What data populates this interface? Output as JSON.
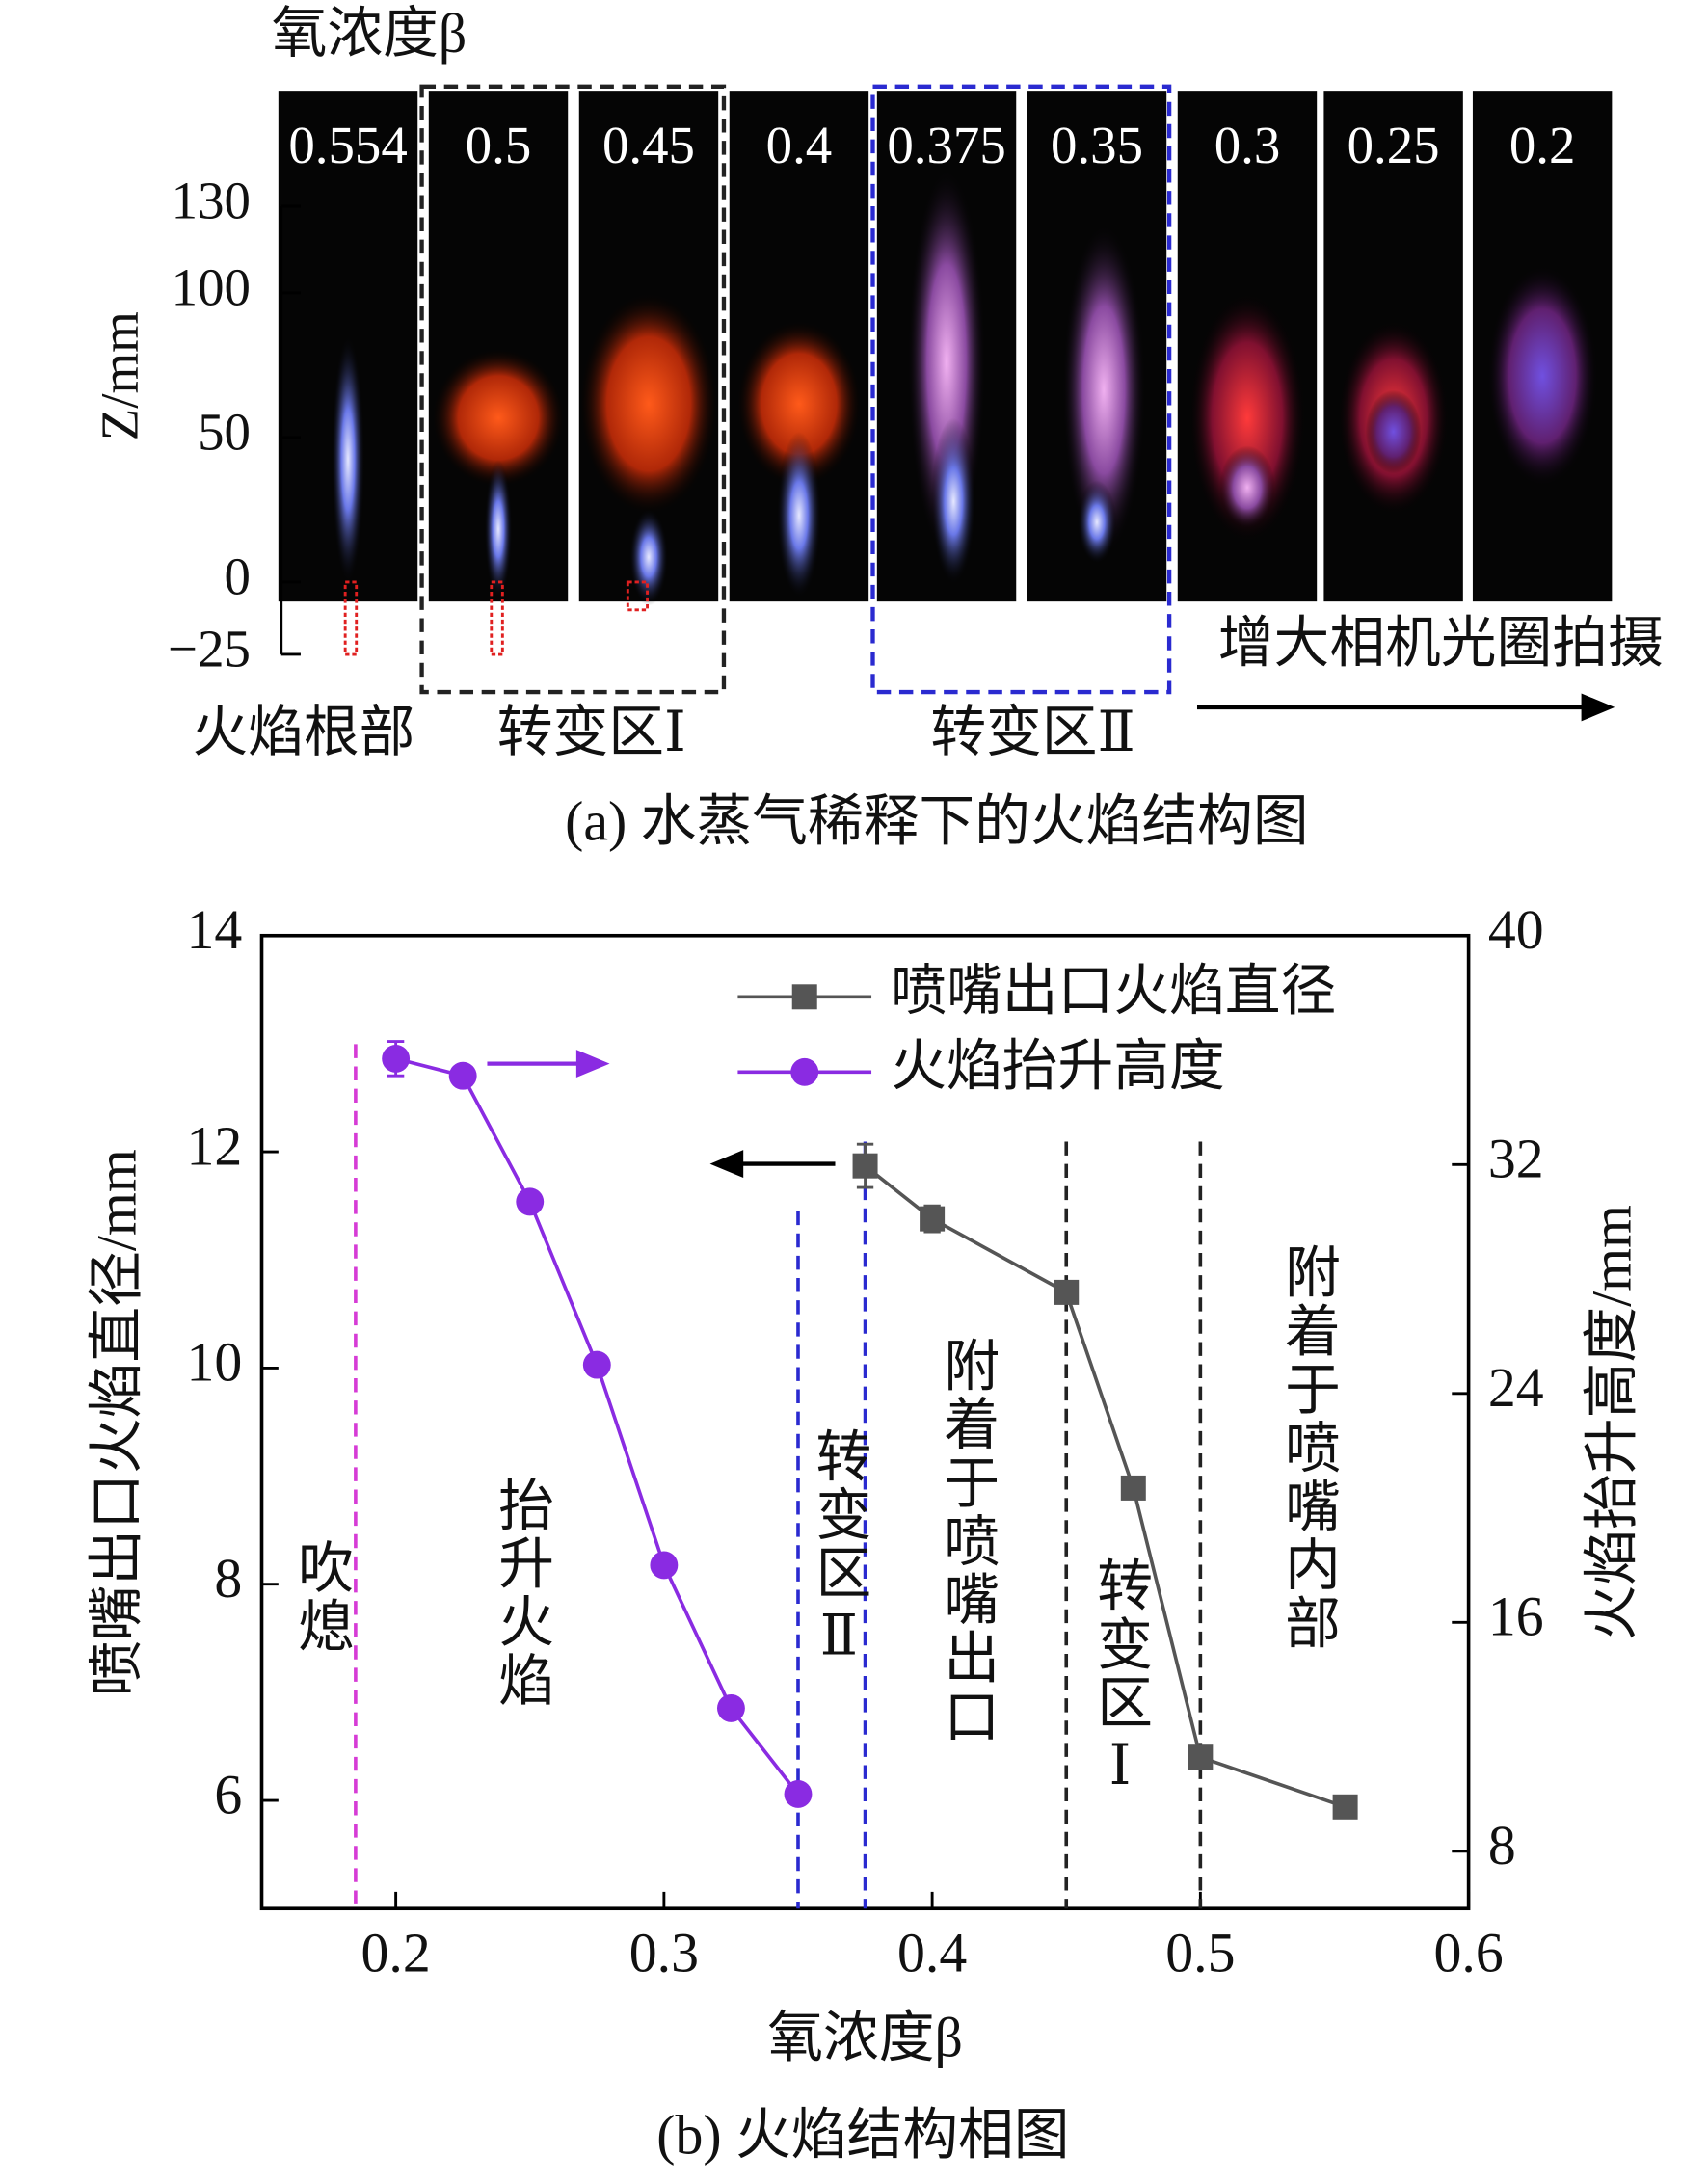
{
  "panel_a": {
    "beta_label": "氧浓度β",
    "beta_values": [
      0.554,
      0.5,
      0.45,
      0.4,
      0.375,
      0.35,
      0.3,
      0.25,
      0.2
    ],
    "z_label": "Z/mm",
    "zlim": [
      -25,
      130
    ],
    "zticks": [
      130,
      100,
      50,
      0,
      {
        "value": -25,
        "label": "−25"
      }
    ],
    "group_labels": [
      "火焰根部",
      "转变区Ⅰ",
      "转变区Ⅱ"
    ],
    "aperture_note": "增大相机光圈拍摄",
    "caption": "(a) 水蒸气稀释下的火焰结构图"
  },
  "chart_data": {
    "type": "line",
    "xlabel": "氧浓度β",
    "ylabel": "喷嘴出口火焰直径/mm",
    "y2label": "火焰抬升高度/mm",
    "caption": "(b) 火焰结构相图",
    "xlim": [
      0.15,
      0.6
    ],
    "xticks": [
      0.2,
      0.3,
      0.4,
      0.5,
      0.6
    ],
    "ylim": [
      5,
      14
    ],
    "yticks": [
      6,
      8,
      10,
      12,
      14
    ],
    "y2lim": [
      6,
      40
    ],
    "y2ticks": [
      8,
      16,
      24,
      32,
      40
    ],
    "legend": "upper right",
    "series": [
      {
        "name": "喷嘴出口火焰直径",
        "color": "#555555",
        "marker": "square",
        "x": [
          0.375,
          0.4,
          0.45,
          0.475,
          0.5,
          0.554
        ],
        "values": [
          11.87,
          11.38,
          10.7,
          8.89,
          6.4,
          5.94
        ],
        "errors": [
          0.2,
          0.12,
          0.08,
          0.05,
          0.05,
          0.05
        ]
      },
      {
        "name": "火焰抬升高度",
        "color": "#8a2be2",
        "marker": "circle",
        "axis": "y2",
        "x": [
          0.2,
          0.225,
          0.25,
          0.275,
          0.3,
          0.325,
          0.35
        ],
        "values": [
          35.7,
          35.1,
          30.7,
          25.0,
          18.0,
          13.0,
          10.0
        ],
        "errors": [
          0.6,
          0.2,
          0.2,
          0.2,
          0.2,
          0.2,
          0.2
        ]
      }
    ],
    "reference_lines": [
      {
        "x": 0.185,
        "color": "#d63bd6"
      },
      {
        "x": 0.35,
        "color": "#2a2ad0"
      },
      {
        "x": 0.375,
        "color": "#2a2ad0"
      },
      {
        "x": 0.45,
        "color": "#222222"
      },
      {
        "x": 0.5,
        "color": "#222222"
      }
    ],
    "annotations": [
      "吹熄",
      "抬升火焰",
      "转变区Ⅱ",
      "附着于喷嘴出口",
      "转变区Ⅰ",
      "附着于喷嘴内部"
    ]
  }
}
